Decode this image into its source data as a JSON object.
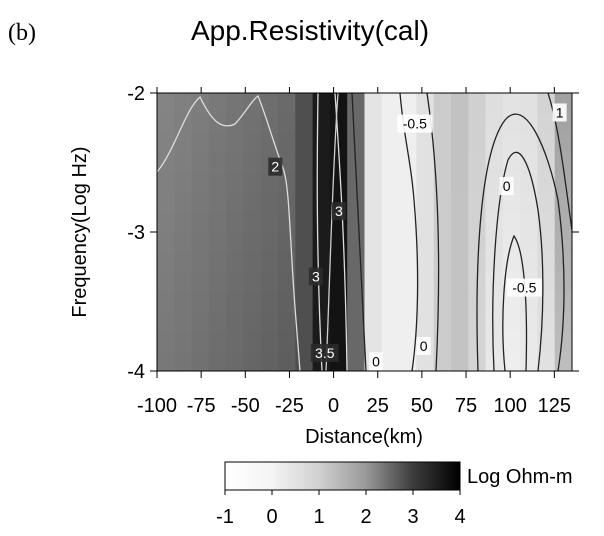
{
  "chart_data": {
    "type": "heatmap",
    "panel_label": "(b)",
    "title": "App.Resistivity(cal)",
    "xlabel": "Distance(km)",
    "ylabel": "Frequency(Log Hz)",
    "xlim": [
      -100,
      135
    ],
    "ylim": [
      -4,
      -2
    ],
    "x_ticks": [
      -100,
      -75,
      -50,
      -25,
      0,
      25,
      50,
      75,
      100,
      125
    ],
    "x_tick_labels": [
      "-100",
      "-75",
      "-50",
      "-25",
      "0",
      "25",
      "50",
      "75",
      "100",
      "125"
    ],
    "y_ticks": [
      -2,
      -3,
      -4
    ],
    "y_tick_labels": [
      "-2",
      "-3",
      "-4"
    ],
    "colorbar": {
      "label": "Log Ohm-m",
      "range": [
        -1,
        4
      ],
      "ticks": [
        -1,
        0,
        1,
        2,
        3,
        4
      ],
      "tick_labels": [
        "-1",
        "0",
        "1",
        "2",
        "3",
        "4"
      ],
      "low_color": "#ffffff",
      "high_color": "#000000"
    },
    "contour_labels": [
      {
        "text": "2",
        "x": -33,
        "y": -2.53,
        "color": "white"
      },
      {
        "text": "3",
        "x": 3,
        "y": -2.85,
        "color": "white"
      },
      {
        "text": "3",
        "x": -10,
        "y": -3.32,
        "color": "white"
      },
      {
        "text": "3.5",
        "x": -5,
        "y": -3.87,
        "color": "white"
      },
      {
        "text": "-0.5",
        "x": 46,
        "y": -2.22,
        "color": "black"
      },
      {
        "text": "0",
        "x": 24,
        "y": -3.93,
        "color": "black"
      },
      {
        "text": "0",
        "x": 51,
        "y": -3.82,
        "color": "black"
      },
      {
        "text": "0",
        "x": 98,
        "y": -2.67,
        "color": "black"
      },
      {
        "text": "-0.5",
        "x": 108,
        "y": -3.4,
        "color": "black"
      },
      {
        "text": "1",
        "x": 128,
        "y": -2.14,
        "color": "black"
      }
    ]
  }
}
